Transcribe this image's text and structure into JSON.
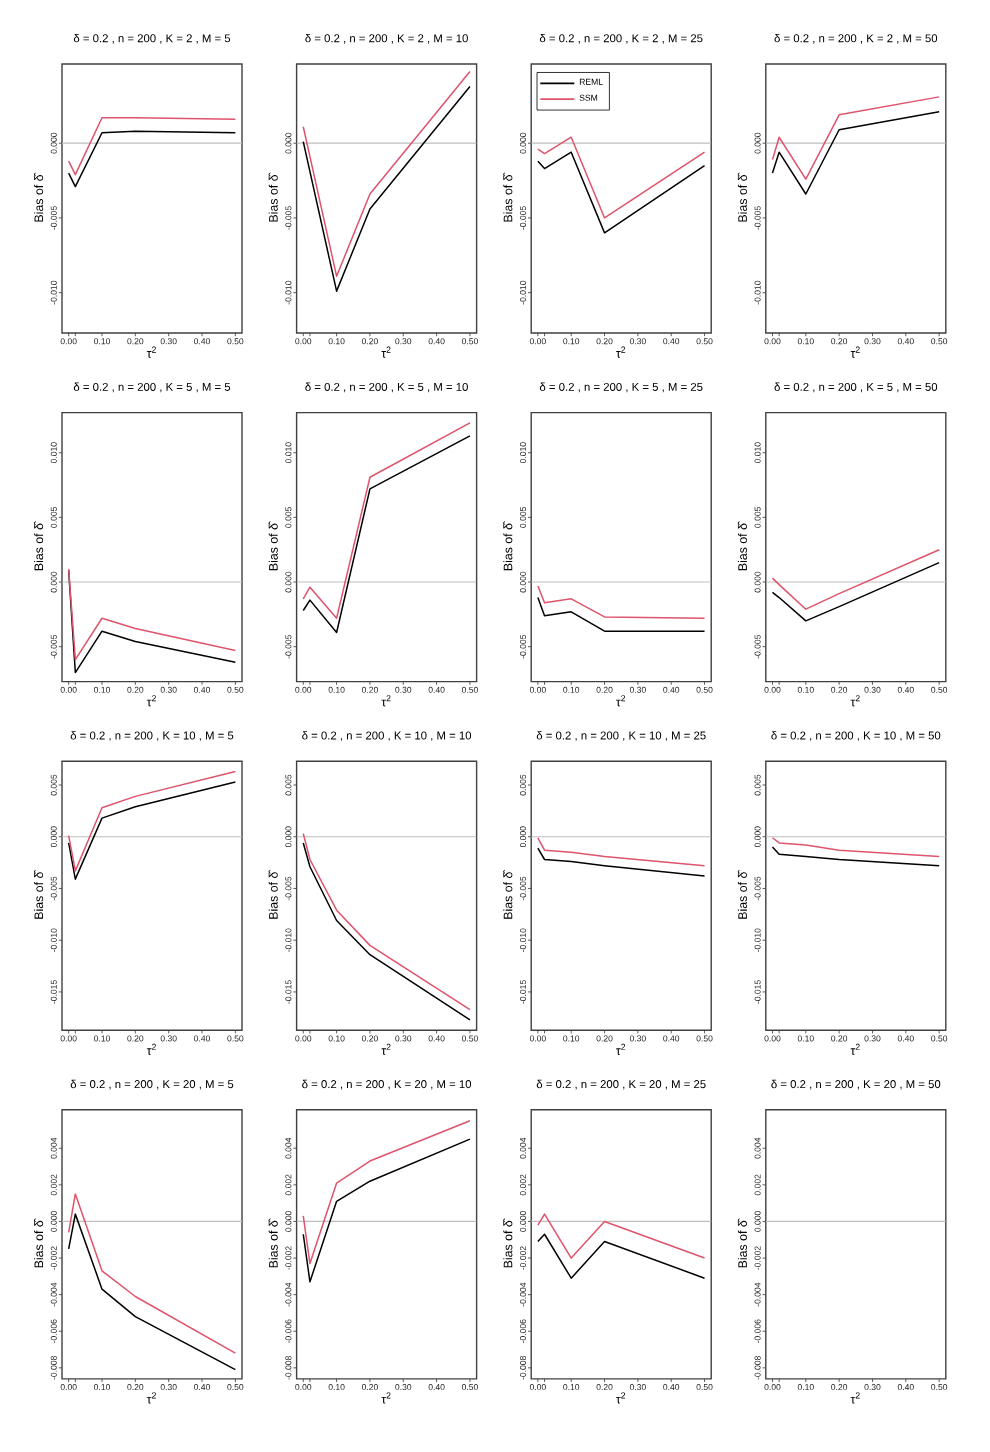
{
  "chart_data": [
    {
      "type": "line",
      "title": "δ = 0.2 , n = 200 , K = 2 , M = 5",
      "xlabel": "τ$^{2}$",
      "ylabel": "Bias of δ̂",
      "x": [
        0,
        0.02,
        0.1,
        0.2,
        0.5
      ],
      "xlim": [
        -0.02,
        0.52
      ],
      "xticks": [
        {
          "value": 0,
          "label": "0.00"
        },
        {
          "value": 0.02,
          "label": null
        },
        {
          "value": 0.1,
          "label": "0.10"
        },
        {
          "value": 0.2,
          "label": "0.20"
        },
        {
          "value": 0.3,
          "label": "0.30"
        },
        {
          "value": 0.4,
          "label": "0.40"
        },
        {
          "value": 0.5,
          "label": "0.50"
        }
      ],
      "ylim": [
        -0.0127,
        0.0053
      ],
      "yticks": [
        {
          "value": -0.01,
          "label": "-0.010"
        },
        {
          "value": -0.005,
          "label": "-0.005"
        },
        {
          "value": 0,
          "label": "0.000"
        }
      ],
      "ref_lines": [
        {
          "axis": "y",
          "value": 0,
          "color": "#bebebe"
        }
      ],
      "series": [
        {
          "color": "#000000",
          "values": [
            -0.002,
            -0.0029,
            0.0007,
            0.0008,
            0.0007
          ]
        },
        {
          "color": "#df536b",
          "values": [
            -0.0012,
            -0.0021,
            0.0017,
            0.0017,
            0.0016
          ]
        }
      ]
    },
    {
      "type": "line",
      "title": "δ = 0.2 , n = 200 , K = 2 , M = 10",
      "xlabel": "τ$^{2}$",
      "ylabel": "Bias of δ̂",
      "x": [
        0,
        0.02,
        0.1,
        0.2,
        0.5
      ],
      "xlim": [
        -0.02,
        0.52
      ],
      "xticks": [
        {
          "value": 0,
          "label": "0.00"
        },
        {
          "value": 0.02,
          "label": null
        },
        {
          "value": 0.1,
          "label": "0.10"
        },
        {
          "value": 0.2,
          "label": "0.20"
        },
        {
          "value": 0.3,
          "label": "0.30"
        },
        {
          "value": 0.4,
          "label": "0.40"
        },
        {
          "value": 0.5,
          "label": "0.50"
        }
      ],
      "ylim": [
        -0.0127,
        0.0053
      ],
      "yticks": [
        {
          "value": -0.01,
          "label": "-0.010"
        },
        {
          "value": -0.005,
          "label": "-0.005"
        },
        {
          "value": 0,
          "label": "0.000"
        }
      ],
      "ref_lines": [
        {
          "axis": "y",
          "value": 0,
          "color": "#bebebe"
        }
      ],
      "series": [
        {
          "color": "#000000",
          "values": [
            0.0001,
            -0.0019,
            -0.0099,
            -0.0044,
            0.0038
          ]
        },
        {
          "color": "#df536b",
          "values": [
            0.0011,
            -0.0009,
            -0.0089,
            -0.0034,
            0.0048
          ]
        }
      ]
    },
    {
      "type": "line",
      "title": "δ = 0.2 , n = 200 , K = 2 , M = 25",
      "xlabel": "τ$^{2}$",
      "ylabel": "Bias of δ̂",
      "x": [
        0,
        0.02,
        0.1,
        0.2,
        0.5
      ],
      "xlim": [
        -0.02,
        0.52
      ],
      "xticks": [
        {
          "value": 0,
          "label": "0.00"
        },
        {
          "value": 0.02,
          "label": null
        },
        {
          "value": 0.1,
          "label": "0.10"
        },
        {
          "value": 0.2,
          "label": "0.20"
        },
        {
          "value": 0.3,
          "label": "0.30"
        },
        {
          "value": 0.4,
          "label": "0.40"
        },
        {
          "value": 0.5,
          "label": "0.50"
        }
      ],
      "ylim": [
        -0.0127,
        0.0053
      ],
      "yticks": [
        {
          "value": -0.01,
          "label": "-0.010"
        },
        {
          "value": -0.005,
          "label": "-0.005"
        },
        {
          "value": 0,
          "label": "0.000"
        }
      ],
      "ref_lines": [
        {
          "axis": "y",
          "value": 0,
          "color": "#bebebe"
        }
      ],
      "legend": "top left",
      "series": [
        {
          "name": "REML",
          "color": "#000000",
          "values": [
            -0.0012,
            -0.0017,
            -0.0006,
            -0.006,
            -0.0015
          ]
        },
        {
          "name": "SSM",
          "color": "#df536b",
          "values": [
            -0.0004,
            -0.0007,
            0.0004,
            -0.005,
            -0.0006
          ]
        }
      ]
    },
    {
      "type": "line",
      "title": "δ = 0.2 , n = 200 , K = 2 , M = 50",
      "xlabel": "τ$^{2}$",
      "ylabel": "Bias of δ̂",
      "x": [
        0,
        0.02,
        0.1,
        0.2,
        0.5
      ],
      "xlim": [
        -0.02,
        0.52
      ],
      "xticks": [
        {
          "value": 0,
          "label": "0.00"
        },
        {
          "value": 0.02,
          "label": null
        },
        {
          "value": 0.1,
          "label": "0.10"
        },
        {
          "value": 0.2,
          "label": "0.20"
        },
        {
          "value": 0.3,
          "label": "0.30"
        },
        {
          "value": 0.4,
          "label": "0.40"
        },
        {
          "value": 0.5,
          "label": "0.50"
        }
      ],
      "ylim": [
        -0.0127,
        0.0053
      ],
      "yticks": [
        {
          "value": -0.01,
          "label": "-0.010"
        },
        {
          "value": -0.005,
          "label": "-0.005"
        },
        {
          "value": 0,
          "label": "0.000"
        }
      ],
      "ref_lines": [
        {
          "axis": "y",
          "value": 0,
          "color": "#bebebe"
        }
      ],
      "series": [
        {
          "color": "#000000",
          "values": [
            -0.002,
            -0.0006,
            -0.0034,
            0.0009,
            0.0021
          ]
        },
        {
          "color": "#df536b",
          "values": [
            -0.0011,
            0.0004,
            -0.0024,
            0.0019,
            0.0031
          ]
        }
      ]
    },
    {
      "type": "line",
      "title": "δ = 0.2 , n = 200 , K = 5 , M = 5",
      "xlabel": "τ$^{2}$",
      "ylabel": "Bias of δ̂",
      "x": [
        0,
        0.02,
        0.1,
        0.2,
        0.5
      ],
      "xlim": [
        -0.02,
        0.52
      ],
      "xticks": [
        {
          "value": 0,
          "label": "0.00"
        },
        {
          "value": 0.02,
          "label": null
        },
        {
          "value": 0.1,
          "label": "0.10"
        },
        {
          "value": 0.2,
          "label": "0.20"
        },
        {
          "value": 0.3,
          "label": "0.30"
        },
        {
          "value": 0.4,
          "label": "0.40"
        },
        {
          "value": 0.5,
          "label": "0.50"
        }
      ],
      "ylim": [
        -0.0077,
        0.0131
      ],
      "yticks": [
        {
          "value": -0.005,
          "label": "-0.005"
        },
        {
          "value": 0,
          "label": "0.000"
        },
        {
          "value": 0.005,
          "label": "0.005"
        },
        {
          "value": 0.01,
          "label": "0.010"
        }
      ],
      "ref_lines": [
        {
          "axis": "y",
          "value": 0,
          "color": "#bebebe"
        }
      ],
      "series": [
        {
          "color": "#000000",
          "values": [
            0.0009,
            -0.007,
            -0.0038,
            -0.0046,
            -0.0062
          ]
        },
        {
          "color": "#df536b",
          "values": [
            0.001,
            -0.006,
            -0.0028,
            -0.0036,
            -0.0053
          ]
        }
      ]
    },
    {
      "type": "line",
      "title": "δ = 0.2 , n = 200 , K = 5 , M = 10",
      "xlabel": "τ$^{2}$",
      "ylabel": "Bias of δ̂",
      "x": [
        0,
        0.02,
        0.1,
        0.2,
        0.5
      ],
      "xlim": [
        -0.02,
        0.52
      ],
      "xticks": [
        {
          "value": 0,
          "label": "0.00"
        },
        {
          "value": 0.02,
          "label": null
        },
        {
          "value": 0.1,
          "label": "0.10"
        },
        {
          "value": 0.2,
          "label": "0.20"
        },
        {
          "value": 0.3,
          "label": "0.30"
        },
        {
          "value": 0.4,
          "label": "0.40"
        },
        {
          "value": 0.5,
          "label": "0.50"
        }
      ],
      "ylim": [
        -0.0077,
        0.0131
      ],
      "yticks": [
        {
          "value": -0.005,
          "label": "-0.005"
        },
        {
          "value": 0,
          "label": "0.000"
        },
        {
          "value": 0.005,
          "label": "0.005"
        },
        {
          "value": 0.01,
          "label": "0.010"
        }
      ],
      "ref_lines": [
        {
          "axis": "y",
          "value": 0,
          "color": "#bebebe"
        }
      ],
      "series": [
        {
          "color": "#000000",
          "values": [
            -0.0022,
            -0.0014,
            -0.0039,
            0.0072,
            0.0113
          ]
        },
        {
          "color": "#df536b",
          "values": [
            -0.0013,
            -0.0004,
            -0.0028,
            0.0081,
            0.0123
          ]
        }
      ]
    },
    {
      "type": "line",
      "title": "δ = 0.2 , n = 200 , K = 5 , M = 25",
      "xlabel": "τ$^{2}$",
      "ylabel": "Bias of δ̂",
      "x": [
        0,
        0.02,
        0.1,
        0.2,
        0.5
      ],
      "xlim": [
        -0.02,
        0.52
      ],
      "xticks": [
        {
          "value": 0,
          "label": "0.00"
        },
        {
          "value": 0.02,
          "label": null
        },
        {
          "value": 0.1,
          "label": "0.10"
        },
        {
          "value": 0.2,
          "label": "0.20"
        },
        {
          "value": 0.3,
          "label": "0.30"
        },
        {
          "value": 0.4,
          "label": "0.40"
        },
        {
          "value": 0.5,
          "label": "0.50"
        }
      ],
      "ylim": [
        -0.0077,
        0.0131
      ],
      "yticks": [
        {
          "value": -0.005,
          "label": "-0.005"
        },
        {
          "value": 0,
          "label": "0.000"
        },
        {
          "value": 0.005,
          "label": "0.005"
        },
        {
          "value": 0.01,
          "label": "0.010"
        }
      ],
      "ref_lines": [
        {
          "axis": "y",
          "value": 0,
          "color": "#bebebe"
        }
      ],
      "series": [
        {
          "color": "#000000",
          "values": [
            -0.0012,
            -0.0026,
            -0.0023,
            -0.0038,
            -0.0038
          ]
        },
        {
          "color": "#df536b",
          "values": [
            -0.0003,
            -0.0016,
            -0.0013,
            -0.0027,
            -0.0028
          ]
        }
      ]
    },
    {
      "type": "line",
      "title": "δ = 0.2 , n = 200 , K = 5 , M = 50",
      "xlabel": "τ$^{2}$",
      "ylabel": "Bias of δ̂",
      "x": [
        0,
        0.02,
        0.1,
        0.2,
        0.5
      ],
      "xlim": [
        -0.02,
        0.52
      ],
      "xticks": [
        {
          "value": 0,
          "label": "0.00"
        },
        {
          "value": 0.02,
          "label": null
        },
        {
          "value": 0.1,
          "label": "0.10"
        },
        {
          "value": 0.2,
          "label": "0.20"
        },
        {
          "value": 0.3,
          "label": "0.30"
        },
        {
          "value": 0.4,
          "label": "0.40"
        },
        {
          "value": 0.5,
          "label": "0.50"
        }
      ],
      "ylim": [
        -0.0077,
        0.0131
      ],
      "yticks": [
        {
          "value": -0.005,
          "label": "-0.005"
        },
        {
          "value": 0,
          "label": "0.000"
        },
        {
          "value": 0.005,
          "label": "0.005"
        },
        {
          "value": 0.01,
          "label": "0.010"
        }
      ],
      "ref_lines": [
        {
          "axis": "y",
          "value": 0,
          "color": "#bebebe"
        }
      ],
      "series": [
        {
          "color": "#000000",
          "values": [
            -0.0008,
            -0.0012,
            -0.003,
            -0.0019,
            0.0015
          ]
        },
        {
          "color": "#df536b",
          "values": [
            0.0003,
            -0.0002,
            -0.0021,
            -0.0009,
            0.0025
          ]
        }
      ]
    },
    {
      "type": "line",
      "title": "δ = 0.2 , n = 200 , K = 10 , M = 5",
      "xlabel": "τ$^{2}$",
      "ylabel": "Bias of δ̂",
      "x": [
        0,
        0.02,
        0.1,
        0.2,
        0.5
      ],
      "xlim": [
        -0.02,
        0.52
      ],
      "xticks": [
        {
          "value": 0,
          "label": "0.00"
        },
        {
          "value": 0.02,
          "label": null
        },
        {
          "value": 0.1,
          "label": "0.10"
        },
        {
          "value": 0.2,
          "label": "0.20"
        },
        {
          "value": 0.3,
          "label": "0.30"
        },
        {
          "value": 0.4,
          "label": "0.40"
        },
        {
          "value": 0.5,
          "label": "0.50"
        }
      ],
      "ylim": [
        -0.0187,
        0.0073
      ],
      "yticks": [
        {
          "value": -0.015,
          "label": "-0.015"
        },
        {
          "value": -0.01,
          "label": "-0.010"
        },
        {
          "value": -0.005,
          "label": "-0.005"
        },
        {
          "value": 0,
          "label": "0.000"
        },
        {
          "value": 0.005,
          "label": "0.005"
        }
      ],
      "ref_lines": [
        {
          "axis": "y",
          "value": 0,
          "color": "#bebebe"
        }
      ],
      "series": [
        {
          "color": "#000000",
          "values": [
            -0.0006,
            -0.0041,
            0.0018,
            0.0029,
            0.0053
          ]
        },
        {
          "color": "#df536b",
          "values": [
            0.0001,
            -0.0033,
            0.0028,
            0.0039,
            0.0063
          ]
        }
      ]
    },
    {
      "type": "line",
      "title": "δ = 0.2 , n = 200 , K = 10 , M = 10",
      "xlabel": "τ$^{2}$",
      "ylabel": "Bias of δ̂",
      "x": [
        0,
        0.02,
        0.1,
        0.2,
        0.5
      ],
      "xlim": [
        -0.02,
        0.52
      ],
      "xticks": [
        {
          "value": 0,
          "label": "0.00"
        },
        {
          "value": 0.02,
          "label": null
        },
        {
          "value": 0.1,
          "label": "0.10"
        },
        {
          "value": 0.2,
          "label": "0.20"
        },
        {
          "value": 0.3,
          "label": "0.30"
        },
        {
          "value": 0.4,
          "label": "0.40"
        },
        {
          "value": 0.5,
          "label": "0.50"
        }
      ],
      "ylim": [
        -0.0187,
        0.0073
      ],
      "yticks": [
        {
          "value": -0.015,
          "label": "-0.015"
        },
        {
          "value": -0.01,
          "label": "-0.010"
        },
        {
          "value": -0.005,
          "label": "-0.005"
        },
        {
          "value": 0,
          "label": "0.000"
        },
        {
          "value": 0.005,
          "label": "0.005"
        }
      ],
      "ref_lines": [
        {
          "axis": "y",
          "value": 0,
          "color": "#bebebe"
        }
      ],
      "series": [
        {
          "color": "#000000",
          "values": [
            -0.0006,
            -0.0029,
            -0.0081,
            -0.0114,
            -0.0177
          ]
        },
        {
          "color": "#df536b",
          "values": [
            0.0003,
            -0.0022,
            -0.0071,
            -0.0105,
            -0.0167
          ]
        }
      ]
    },
    {
      "type": "line",
      "title": "δ = 0.2 , n = 200 , K = 10 , M = 25",
      "xlabel": "τ$^{2}$",
      "ylabel": "Bias of δ̂",
      "x": [
        0,
        0.02,
        0.1,
        0.2,
        0.5
      ],
      "xlim": [
        -0.02,
        0.52
      ],
      "xticks": [
        {
          "value": 0,
          "label": "0.00"
        },
        {
          "value": 0.02,
          "label": null
        },
        {
          "value": 0.1,
          "label": "0.10"
        },
        {
          "value": 0.2,
          "label": "0.20"
        },
        {
          "value": 0.3,
          "label": "0.30"
        },
        {
          "value": 0.4,
          "label": "0.40"
        },
        {
          "value": 0.5,
          "label": "0.50"
        }
      ],
      "ylim": [
        -0.0187,
        0.0073
      ],
      "yticks": [
        {
          "value": -0.015,
          "label": "-0.015"
        },
        {
          "value": -0.01,
          "label": "-0.010"
        },
        {
          "value": -0.005,
          "label": "-0.005"
        },
        {
          "value": 0,
          "label": "0.000"
        },
        {
          "value": 0.005,
          "label": "0.005"
        }
      ],
      "ref_lines": [
        {
          "axis": "y",
          "value": 0,
          "color": "#bebebe"
        }
      ],
      "series": [
        {
          "color": "#000000",
          "values": [
            -0.0011,
            -0.0022,
            -0.0024,
            -0.0028,
            -0.0038
          ]
        },
        {
          "color": "#df536b",
          "values": [
            -0.0001,
            -0.0013,
            -0.0015,
            -0.0019,
            -0.0028
          ]
        }
      ]
    },
    {
      "type": "line",
      "title": "δ = 0.2 , n = 200 , K = 10 , M = 50",
      "xlabel": "τ$^{2}$",
      "ylabel": "Bias of δ̂",
      "x": [
        0,
        0.02,
        0.1,
        0.2,
        0.5
      ],
      "xlim": [
        -0.02,
        0.52
      ],
      "xticks": [
        {
          "value": 0,
          "label": "0.00"
        },
        {
          "value": 0.02,
          "label": null
        },
        {
          "value": 0.1,
          "label": "0.10"
        },
        {
          "value": 0.2,
          "label": "0.20"
        },
        {
          "value": 0.3,
          "label": "0.30"
        },
        {
          "value": 0.4,
          "label": "0.40"
        },
        {
          "value": 0.5,
          "label": "0.50"
        }
      ],
      "ylim": [
        -0.0187,
        0.0073
      ],
      "yticks": [
        {
          "value": -0.015,
          "label": "-0.015"
        },
        {
          "value": -0.01,
          "label": "-0.010"
        },
        {
          "value": -0.005,
          "label": "-0.005"
        },
        {
          "value": 0,
          "label": "0.000"
        },
        {
          "value": 0.005,
          "label": "0.005"
        }
      ],
      "ref_lines": [
        {
          "axis": "y",
          "value": 0,
          "color": "#bebebe"
        }
      ],
      "series": [
        {
          "color": "#000000",
          "values": [
            -0.001,
            -0.0017,
            -0.0019,
            -0.0022,
            -0.0028
          ]
        },
        {
          "color": "#df536b",
          "values": [
            -0.0001,
            -0.0006,
            -0.0008,
            -0.0013,
            -0.0019
          ]
        }
      ]
    },
    {
      "type": "line",
      "title": "δ = 0.2 , n = 200 , K = 20 , M = 5",
      "xlabel": "τ$^{2}$",
      "ylabel": "Bias of δ̂",
      "x": [
        0,
        0.02,
        0.1,
        0.2,
        0.5
      ],
      "xlim": [
        -0.02,
        0.52
      ],
      "xticks": [
        {
          "value": 0,
          "label": "0.00"
        },
        {
          "value": 0.02,
          "label": null
        },
        {
          "value": 0.1,
          "label": "0.10"
        },
        {
          "value": 0.2,
          "label": "0.20"
        },
        {
          "value": 0.3,
          "label": "0.30"
        },
        {
          "value": 0.4,
          "label": "0.40"
        },
        {
          "value": 0.5,
          "label": "0.50"
        }
      ],
      "ylim": [
        -0.0086,
        0.0061
      ],
      "yticks": [
        {
          "value": -0.008,
          "label": "-0.008"
        },
        {
          "value": -0.006,
          "label": "-0.006"
        },
        {
          "value": -0.004,
          "label": "-0.004"
        },
        {
          "value": -0.002,
          "label": "-0.002"
        },
        {
          "value": 0,
          "label": "0.000"
        },
        {
          "value": 0.002,
          "label": "0.002"
        },
        {
          "value": 0.004,
          "label": "0.004"
        }
      ],
      "ref_lines": [
        {
          "axis": "y",
          "value": 0,
          "color": "#bebebe"
        }
      ],
      "series": [
        {
          "color": "#000000",
          "values": [
            -0.0015,
            0.0004,
            -0.0037,
            -0.0052,
            -0.0081
          ]
        },
        {
          "color": "#df536b",
          "values": [
            -0.0006,
            0.0015,
            -0.0027,
            -0.0041,
            -0.0072
          ]
        }
      ]
    },
    {
      "type": "line",
      "title": "δ = 0.2 , n = 200 , K = 20 , M = 10",
      "xlabel": "τ$^{2}$",
      "ylabel": "Bias of δ̂",
      "x": [
        0,
        0.02,
        0.1,
        0.2,
        0.5
      ],
      "xlim": [
        -0.02,
        0.52
      ],
      "xticks": [
        {
          "value": 0,
          "label": "0.00"
        },
        {
          "value": 0.02,
          "label": null
        },
        {
          "value": 0.1,
          "label": "0.10"
        },
        {
          "value": 0.2,
          "label": "0.20"
        },
        {
          "value": 0.3,
          "label": "0.30"
        },
        {
          "value": 0.4,
          "label": "0.40"
        },
        {
          "value": 0.5,
          "label": "0.50"
        }
      ],
      "ylim": [
        -0.0086,
        0.0061
      ],
      "yticks": [
        {
          "value": -0.008,
          "label": "-0.008"
        },
        {
          "value": -0.006,
          "label": "-0.006"
        },
        {
          "value": -0.004,
          "label": "-0.004"
        },
        {
          "value": -0.002,
          "label": "-0.002"
        },
        {
          "value": 0,
          "label": "0.000"
        },
        {
          "value": 0.002,
          "label": "0.002"
        },
        {
          "value": 0.004,
          "label": "0.004"
        }
      ],
      "ref_lines": [
        {
          "axis": "y",
          "value": 0,
          "color": "#bebebe"
        }
      ],
      "series": [
        {
          "color": "#000000",
          "values": [
            -0.0007,
            -0.0033,
            0.0011,
            0.0022,
            0.0045
          ]
        },
        {
          "color": "#df536b",
          "values": [
            0.0003,
            -0.0023,
            0.0021,
            0.0033,
            0.0055
          ]
        }
      ]
    },
    {
      "type": "line",
      "title": "δ = 0.2 , n = 200 , K = 20 , M = 25",
      "xlabel": "τ$^{2}$",
      "ylabel": "Bias of δ̂",
      "x": [
        0,
        0.02,
        0.1,
        0.2,
        0.5
      ],
      "xlim": [
        -0.02,
        0.52
      ],
      "xticks": [
        {
          "value": 0,
          "label": "0.00"
        },
        {
          "value": 0.02,
          "label": null
        },
        {
          "value": 0.1,
          "label": "0.10"
        },
        {
          "value": 0.2,
          "label": "0.20"
        },
        {
          "value": 0.3,
          "label": "0.30"
        },
        {
          "value": 0.4,
          "label": "0.40"
        },
        {
          "value": 0.5,
          "label": "0.50"
        }
      ],
      "ylim": [
        -0.0086,
        0.0061
      ],
      "yticks": [
        {
          "value": -0.008,
          "label": "-0.008"
        },
        {
          "value": -0.006,
          "label": "-0.006"
        },
        {
          "value": -0.004,
          "label": "-0.004"
        },
        {
          "value": -0.002,
          "label": "-0.002"
        },
        {
          "value": 0,
          "label": "0.000"
        },
        {
          "value": 0.002,
          "label": "0.002"
        },
        {
          "value": 0.004,
          "label": "0.004"
        }
      ],
      "ref_lines": [
        {
          "axis": "y",
          "value": 0,
          "color": "#bebebe"
        }
      ],
      "series": [
        {
          "color": "#000000",
          "values": [
            -0.0011,
            -0.0007,
            -0.0031,
            -0.0011,
            -0.0031
          ]
        },
        {
          "color": "#df536b",
          "values": [
            -0.0002,
            0.0004,
            -0.002,
            0.0,
            -0.002
          ]
        }
      ]
    },
    {
      "type": "line",
      "title": "δ = 0.2 , n = 200 , K = 20 , M = 50",
      "xlabel": "τ$^{2}$",
      "ylabel": "Bias of δ̂",
      "xlim": [
        -0.02,
        0.52
      ],
      "xticks": [
        {
          "value": 0,
          "label": "0.00"
        },
        {
          "value": 0.02,
          "label": null
        },
        {
          "value": 0.1,
          "label": "0.10"
        },
        {
          "value": 0.2,
          "label": "0.20"
        },
        {
          "value": 0.3,
          "label": "0.30"
        },
        {
          "value": 0.4,
          "label": "0.40"
        },
        {
          "value": 0.5,
          "label": "0.50"
        }
      ],
      "ylim": [
        -0.0086,
        0.0061
      ],
      "yticks": [
        {
          "value": -0.008,
          "label": "-0.008"
        },
        {
          "value": -0.006,
          "label": "-0.006"
        },
        {
          "value": -0.004,
          "label": "-0.004"
        },
        {
          "value": -0.002,
          "label": "-0.002"
        },
        {
          "value": 0,
          "label": "0.000"
        },
        {
          "value": 0.002,
          "label": "0.002"
        },
        {
          "value": 0.004,
          "label": "0.004"
        }
      ],
      "ref_lines": [
        {
          "axis": "y",
          "value": 0,
          "color": "#bebebe"
        }
      ]
    }
  ]
}
